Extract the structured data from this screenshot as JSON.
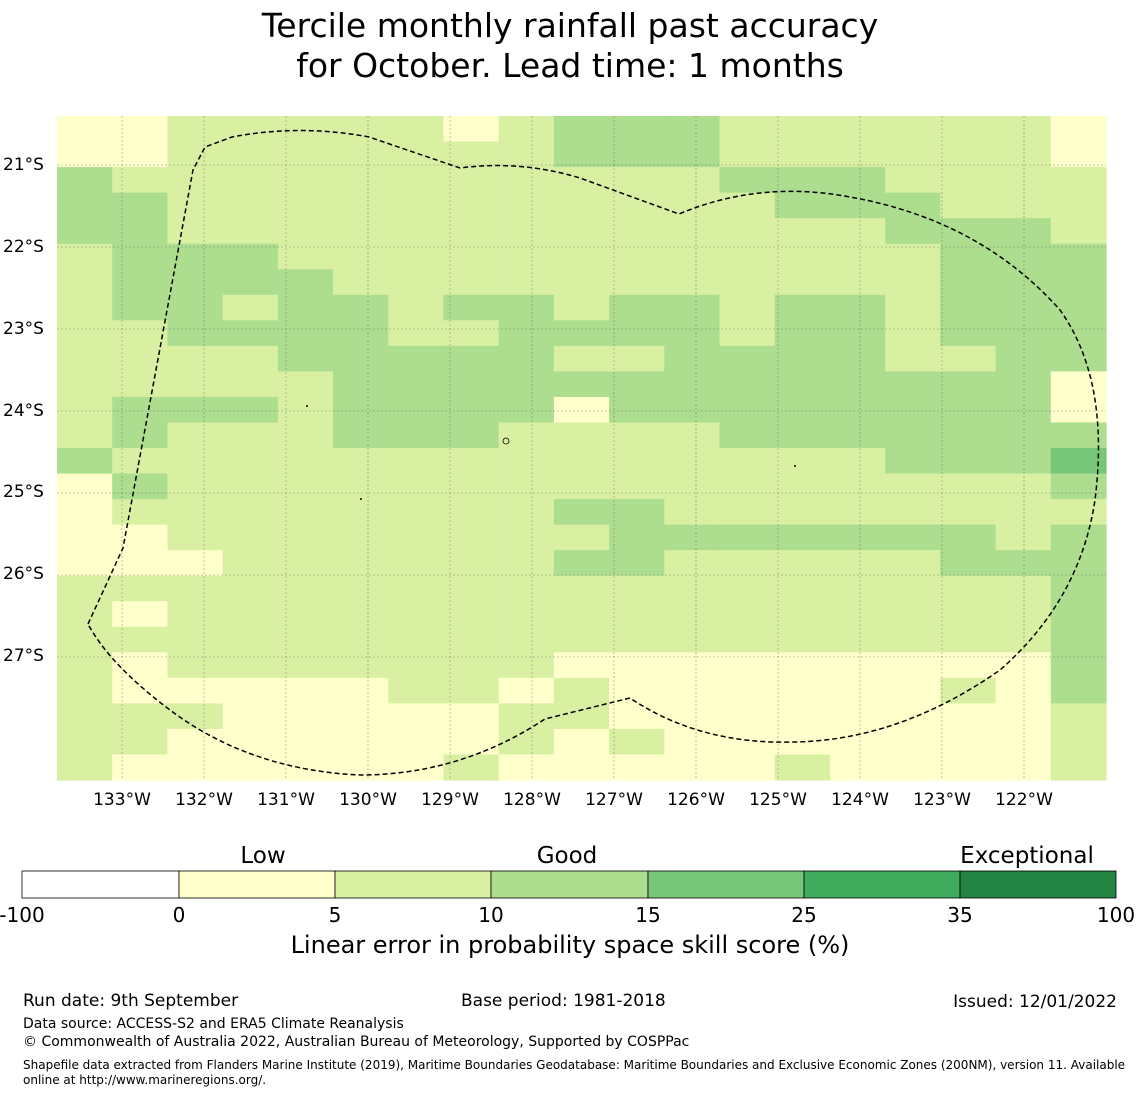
{
  "title": {
    "line1": "Tercile monthly rainfall past accuracy",
    "line2": "for October. Lead time: 1 months"
  },
  "map": {
    "lat_labels": [
      "21°S",
      "22°S",
      "23°S",
      "24°S",
      "25°S",
      "26°S",
      "27°S"
    ],
    "lon_labels": [
      "133°W",
      "132°W",
      "131°W",
      "130°W",
      "129°W",
      "128°W",
      "127°W",
      "126°W",
      "125°W",
      "124°W",
      "123°W",
      "122°W"
    ],
    "lat_values": [
      -21,
      -22,
      -23,
      -24,
      -25,
      -26,
      -27
    ],
    "lon_values": [
      -133,
      -132,
      -131,
      -130,
      -129,
      -128,
      -127,
      -126,
      -125,
      -124,
      -123,
      -122
    ],
    "grid_legend": {
      "0": "#ffffff",
      "1": "#ffffcc",
      "2": "#d9f0a3",
      "3": "#addd8e",
      "4": "#78c679",
      "5": "#41ab5d",
      "6": "#238443"
    },
    "grid_rows": [
      "1122222123332222221",
      "1122222223332222221",
      "3222222222223332222",
      "3322222222222333222",
      "3322222222222223332",
      "2333222222222222333",
      "2333322222222222333",
      "2332332332332332333",
      "2233332233332332333",
      "2222333332233332233",
      "2222233333333333331",
      "2333233331333333331",
      "2322233322223333333",
      "3222222222222223334",
      "1322222222222222223",
      "1222222223322222222",
      "1122222222333333323",
      "1112222223322222333",
      "2222222222222222223",
      "2122222222222222223",
      "2222222222222222223",
      "2122222221111111113",
      "2111112212111111213",
      "2221111122111111112",
      "2211111121211111112",
      "2111111211111211112"
    ]
  },
  "colorbar": {
    "categories": [
      "Low",
      "Good",
      "Exceptional"
    ],
    "colors": [
      "#ffffff",
      "#ffffcc",
      "#d9f0a3",
      "#addd8e",
      "#78c679",
      "#41ab5d",
      "#238443"
    ],
    "ticks": [
      "-100",
      "0",
      "5",
      "10",
      "15",
      "25",
      "35",
      "100"
    ],
    "label": "Linear error in probability space skill score (%)"
  },
  "footer": {
    "run_date": "Run date: 9th September",
    "base_period": "Base period: 1981-2018",
    "issued": "Issued: 12/01/2022",
    "data_source": "Data source: ACCESS-S2 and ERA5 Climate Reanalysis",
    "copyright": "© Commonwealth of Australia 2022, Australian Bureau of Meteorology, Supported by COSPPac",
    "shapefile": "Shapefile data extracted from Flanders Marine Institute (2019), Maritime Boundaries Geodatabase: Maritime Boundaries and Exclusive Economic Zones (200NM), version 11. Available online at http://www.marineregions.org/."
  }
}
